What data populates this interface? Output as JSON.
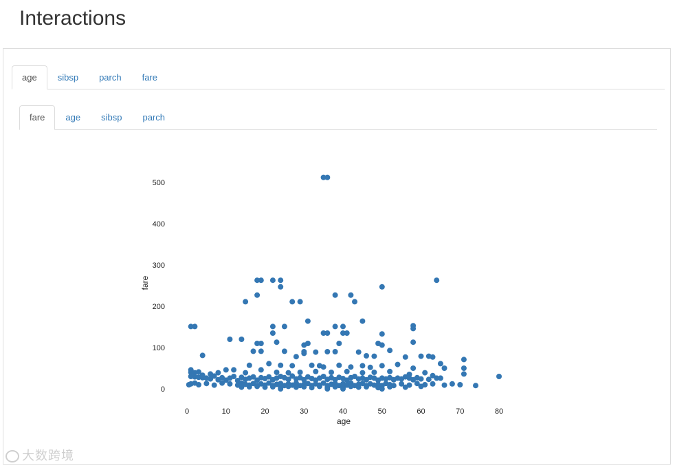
{
  "page": {
    "title": "Interactions"
  },
  "outer_tabs": [
    {
      "label": "age",
      "active": true
    },
    {
      "label": "sibsp",
      "active": false
    },
    {
      "label": "parch",
      "active": false
    },
    {
      "label": "fare",
      "active": false
    }
  ],
  "inner_tabs": [
    {
      "label": "fare",
      "active": true
    },
    {
      "label": "age",
      "active": false
    },
    {
      "label": "sibsp",
      "active": false
    },
    {
      "label": "parch",
      "active": false
    }
  ],
  "watermark": {
    "text": "大数跨境"
  },
  "chart_data": {
    "type": "scatter",
    "xlabel": "age",
    "ylabel": "fare",
    "xlim": [
      -2,
      81
    ],
    "ylim": [
      -8,
      530
    ],
    "xticks": [
      0,
      10,
      20,
      30,
      40,
      50,
      60,
      70,
      80
    ],
    "yticks": [
      0,
      100,
      200,
      300,
      400,
      500
    ],
    "grid": false,
    "color": "#3477b3",
    "series": [
      {
        "points": [
          [
            35,
            512
          ],
          [
            36,
            512
          ],
          [
            18,
            263
          ],
          [
            19,
            263
          ],
          [
            22,
            263
          ],
          [
            24,
            263
          ],
          [
            64,
            263
          ],
          [
            24,
            247
          ],
          [
            50,
            247
          ],
          [
            18,
            227
          ],
          [
            38,
            227
          ],
          [
            42,
            227
          ],
          [
            15,
            211
          ],
          [
            27,
            211
          ],
          [
            29,
            211
          ],
          [
            43,
            211
          ],
          [
            31,
            164
          ],
          [
            45,
            164
          ],
          [
            1,
            151
          ],
          [
            2,
            151
          ],
          [
            22,
            151
          ],
          [
            25,
            151
          ],
          [
            38,
            151
          ],
          [
            40,
            151
          ],
          [
            58,
            153
          ],
          [
            58,
            146
          ],
          [
            22,
            135
          ],
          [
            35,
            135
          ],
          [
            36,
            135
          ],
          [
            40,
            135
          ],
          [
            41,
            135
          ],
          [
            50,
            133
          ],
          [
            11,
            120
          ],
          [
            14,
            120
          ],
          [
            18,
            110
          ],
          [
            19,
            110
          ],
          [
            23,
            113
          ],
          [
            30,
            106
          ],
          [
            31,
            110
          ],
          [
            39,
            110
          ],
          [
            49,
            110
          ],
          [
            50,
            106
          ],
          [
            58,
            113
          ],
          [
            4,
            81
          ],
          [
            17,
            91
          ],
          [
            19,
            91
          ],
          [
            25,
            91
          ],
          [
            28,
            78
          ],
          [
            30,
            86
          ],
          [
            30,
            90
          ],
          [
            33,
            89
          ],
          [
            36,
            90
          ],
          [
            38,
            90
          ],
          [
            44,
            89
          ],
          [
            46,
            80
          ],
          [
            48,
            79
          ],
          [
            52,
            93
          ],
          [
            56,
            77
          ],
          [
            60,
            79
          ],
          [
            62,
            79
          ],
          [
            63,
            77
          ],
          [
            65,
            61
          ],
          [
            71,
            71
          ],
          [
            16,
            57
          ],
          [
            21,
            61
          ],
          [
            24,
            57
          ],
          [
            27,
            56
          ],
          [
            32,
            57
          ],
          [
            34,
            56
          ],
          [
            35,
            53
          ],
          [
            39,
            57
          ],
          [
            42,
            53
          ],
          [
            45,
            56
          ],
          [
            47,
            52
          ],
          [
            50,
            56
          ],
          [
            54,
            59
          ],
          [
            58,
            50
          ],
          [
            66,
            50
          ],
          [
            71,
            50
          ],
          [
            71,
            36
          ],
          [
            80,
            30
          ],
          [
            1,
            40
          ],
          [
            1,
            46
          ],
          [
            2,
            39
          ],
          [
            3,
            41
          ],
          [
            4,
            33
          ],
          [
            6,
            36
          ],
          [
            8,
            39
          ],
          [
            10,
            46
          ],
          [
            12,
            46
          ],
          [
            15,
            39
          ],
          [
            19,
            46
          ],
          [
            23,
            40
          ],
          [
            26,
            39
          ],
          [
            29,
            40
          ],
          [
            33,
            42
          ],
          [
            37,
            40
          ],
          [
            41,
            42
          ],
          [
            45,
            39
          ],
          [
            48,
            40
          ],
          [
            52,
            42
          ],
          [
            57,
            35
          ],
          [
            61,
            39
          ],
          [
            63,
            32
          ],
          [
            65,
            26
          ],
          [
            68,
            12
          ],
          [
            74,
            8
          ],
          [
            70,
            10
          ],
          [
            1,
            30
          ],
          [
            2,
            29
          ],
          [
            3,
            28
          ],
          [
            4,
            27
          ],
          [
            5,
            26
          ],
          [
            6,
            24
          ],
          [
            7,
            31
          ],
          [
            8,
            22
          ],
          [
            9,
            27
          ],
          [
            10,
            21
          ],
          [
            11,
            26
          ],
          [
            12,
            30
          ],
          [
            13,
            20
          ],
          [
            14,
            28
          ],
          [
            15,
            23
          ],
          [
            16,
            26
          ],
          [
            17,
            29
          ],
          [
            18,
            21
          ],
          [
            19,
            27
          ],
          [
            20,
            25
          ],
          [
            21,
            29
          ],
          [
            22,
            22
          ],
          [
            23,
            26
          ],
          [
            24,
            30
          ],
          [
            25,
            27
          ],
          [
            26,
            23
          ],
          [
            27,
            31
          ],
          [
            28,
            24
          ],
          [
            29,
            27
          ],
          [
            30,
            22
          ],
          [
            31,
            29
          ],
          [
            32,
            25
          ],
          [
            33,
            21
          ],
          [
            34,
            26
          ],
          [
            35,
            30
          ],
          [
            36,
            23
          ],
          [
            37,
            27
          ],
          [
            38,
            22
          ],
          [
            39,
            28
          ],
          [
            40,
            25
          ],
          [
            41,
            21
          ],
          [
            42,
            27
          ],
          [
            43,
            30
          ],
          [
            44,
            24
          ],
          [
            45,
            26
          ],
          [
            46,
            22
          ],
          [
            47,
            28
          ],
          [
            48,
            26
          ],
          [
            49,
            21
          ],
          [
            50,
            26
          ],
          [
            51,
            24
          ],
          [
            52,
            27
          ],
          [
            53,
            22
          ],
          [
            54,
            26
          ],
          [
            55,
            24
          ],
          [
            56,
            29
          ],
          [
            57,
            26
          ],
          [
            58,
            22
          ],
          [
            59,
            27
          ],
          [
            60,
            24
          ],
          [
            62,
            23
          ],
          [
            64,
            26
          ],
          [
            1,
            12
          ],
          [
            2,
            14
          ],
          [
            3,
            10
          ],
          [
            5,
            13
          ],
          [
            7,
            9
          ],
          [
            9,
            14
          ],
          [
            11,
            12
          ],
          [
            13,
            9
          ],
          [
            14,
            14
          ],
          [
            15,
            11
          ],
          [
            16,
            9
          ],
          [
            17,
            13
          ],
          [
            18,
            8
          ],
          [
            19,
            12
          ],
          [
            20,
            9
          ],
          [
            21,
            14
          ],
          [
            22,
            8
          ],
          [
            23,
            11
          ],
          [
            24,
            13
          ],
          [
            25,
            8
          ],
          [
            26,
            12
          ],
          [
            27,
            9
          ],
          [
            28,
            14
          ],
          [
            29,
            8
          ],
          [
            30,
            11
          ],
          [
            31,
            13
          ],
          [
            32,
            8
          ],
          [
            33,
            12
          ],
          [
            34,
            9
          ],
          [
            35,
            14
          ],
          [
            36,
            8
          ],
          [
            37,
            11
          ],
          [
            38,
            13
          ],
          [
            39,
            8
          ],
          [
            40,
            12
          ],
          [
            41,
            9
          ],
          [
            42,
            14
          ],
          [
            43,
            8
          ],
          [
            44,
            11
          ],
          [
            45,
            13
          ],
          [
            46,
            8
          ],
          [
            47,
            12
          ],
          [
            48,
            9
          ],
          [
            49,
            11
          ],
          [
            50,
            8
          ],
          [
            51,
            13
          ],
          [
            52,
            10
          ],
          [
            53,
            8
          ],
          [
            55,
            12
          ],
          [
            57,
            9
          ],
          [
            59,
            13
          ],
          [
            61,
            10
          ],
          [
            63,
            12
          ],
          [
            66,
            9
          ],
          [
            0.5,
            10
          ],
          [
            14,
            4
          ],
          [
            16,
            5
          ],
          [
            18,
            6
          ],
          [
            20,
            4
          ],
          [
            22,
            5
          ],
          [
            24,
            3
          ],
          [
            26,
            6
          ],
          [
            28,
            4
          ],
          [
            30,
            5
          ],
          [
            32,
            3
          ],
          [
            34,
            6
          ],
          [
            36,
            4
          ],
          [
            38,
            5
          ],
          [
            40,
            3
          ],
          [
            42,
            6
          ],
          [
            44,
            4
          ],
          [
            46,
            5
          ],
          [
            49,
            3
          ],
          [
            52,
            5
          ],
          [
            56,
            4
          ],
          [
            60,
            6
          ],
          [
            24,
            0
          ],
          [
            36,
            0
          ],
          [
            40,
            0
          ],
          [
            50,
            0
          ]
        ]
      }
    ]
  }
}
